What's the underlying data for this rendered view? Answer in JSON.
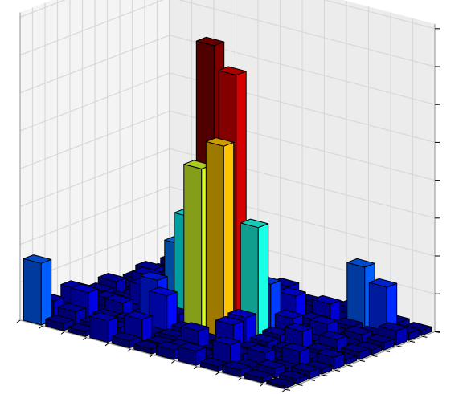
{
  "chart_data": {
    "type": "bar3d",
    "grid": true,
    "colormap": "jet",
    "zlim": [
      0,
      13
    ],
    "x_positions": [
      0,
      1,
      2,
      3,
      4,
      5,
      6,
      7,
      8,
      9,
      10,
      11
    ],
    "y_positions": [
      0,
      1,
      2,
      3,
      4,
      5,
      6,
      7,
      8,
      9,
      10,
      11
    ],
    "heights": [
      [
        2.6,
        0.3,
        0.2,
        0.9,
        0.3,
        0.2,
        0.4,
        0.6,
        0.2,
        0.3,
        0.2,
        0.1
      ],
      [
        0.8,
        0.6,
        0.3,
        0.4,
        1.0,
        0.2,
        0.3,
        0.2,
        0.9,
        0.2,
        0.4,
        0.2
      ],
      [
        0.3,
        1.2,
        0.4,
        0.5,
        0.2,
        0.3,
        0.8,
        0.2,
        0.3,
        0.6,
        0.2,
        0.3
      ],
      [
        0.9,
        0.2,
        0.8,
        0.3,
        1.6,
        0.4,
        0.2,
        1.1,
        0.3,
        0.2,
        0.7,
        0.2
      ],
      [
        0.2,
        0.5,
        0.3,
        1.8,
        0.6,
        7.0,
        8.2,
        1.2,
        0.4,
        0.3,
        0.2,
        0.5
      ],
      [
        0.4,
        0.3,
        1.1,
        0.4,
        4.5,
        12.0,
        11.0,
        4.8,
        0.5,
        0.9,
        0.3,
        0.2
      ],
      [
        0.6,
        0.2,
        0.4,
        2.9,
        5.2,
        5.6,
        2.4,
        2.2,
        1.0,
        0.3,
        0.6,
        0.3
      ],
      [
        0.2,
        0.9,
        0.3,
        0.5,
        3.5,
        0.6,
        1.1,
        0.4,
        0.3,
        0.8,
        0.2,
        0.2
      ],
      [
        0.3,
        0.2,
        0.6,
        0.3,
        0.4,
        0.9,
        0.3,
        1.3,
        0.5,
        0.2,
        0.4,
        0.3
      ],
      [
        0.5,
        0.4,
        0.2,
        0.8,
        0.2,
        0.3,
        0.7,
        0.2,
        1.0,
        0.3,
        0.2,
        0.6
      ],
      [
        0.2,
        0.3,
        0.9,
        0.2,
        0.5,
        0.2,
        0.3,
        0.4,
        0.2,
        2.6,
        2.0,
        0.3
      ],
      [
        0.4,
        0.2,
        0.3,
        0.4,
        0.2,
        0.6,
        0.2,
        0.3,
        0.4,
        0.5,
        0.3,
        0.2
      ]
    ],
    "title": "",
    "xlabel": "",
    "ylabel": "",
    "zlabel": ""
  }
}
